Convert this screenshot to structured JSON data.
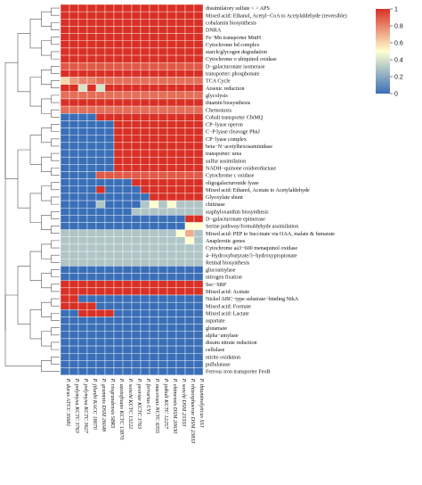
{
  "chart_data": {
    "type": "heatmap",
    "title": "",
    "xlabel": "",
    "ylabel": "",
    "colorbar": {
      "min": 0,
      "max": 1,
      "ticks": [
        "0",
        "0.2",
        "0.4",
        "0.6",
        "0.8",
        "1"
      ],
      "colors": [
        "#3a6fb8",
        "#ffffd0",
        "#d93025"
      ]
    },
    "dendrogram": "left",
    "columns": [
      "P. durus ATCC 35681",
      "P. polymyxa KCTC 3763",
      "P. polymyxa KCTC 3627",
      "P. jilunlii KACC 18070",
      "P. graminis DSM 26048",
      "P. riograndensis SBR5",
      "P. azotofixans KCTC 13870",
      "P. sonchi KCTC 13222",
      "P. peoriae KCTC 3763",
      "P. ferrarius CY1",
      "P. macerans NCTC 6355",
      "P. pabuli KCTC 12257",
      "P. ehimensis DSM 20630",
      "P. sonchi DSM 23333",
      "P. rhizosphaerae DSM 23833",
      "P. thiaminolyticus SSJ"
    ],
    "highlight_column_index": 13,
    "highlight_color": "#e0208a",
    "rows": [
      "dissimilatory sulfate < > APS",
      "Mixed acid: Ethanol, Acetyl−CoA to Acetylaldehyde (reversible)",
      "cobalamin biosynthesis",
      "DNRA",
      "Fe−Mn transporter MntH",
      "Cytochrome bd complex",
      "starch/glycogen degradation",
      "Cytochrome o ubiquinol oxidase",
      "D−galacturonate isomerase",
      "transporter: phosphonate",
      "TCA Cycle",
      "Arsenic reduction",
      "glycolysis",
      "thiamin biosynthesis",
      "Chemotaxis",
      "Cobalt transporter CbiMQ",
      "CP−lyase operon",
      "C−P lyase cleavage PhnJ",
      "CP−lyase complex",
      "beta−N−acetylhexosaminidase",
      "transporter: urea",
      "sulfur assimilation",
      "NADH−quinone oxidoreductase",
      "Cytochrome c oxidase",
      "oligogalacturonide lyase",
      "Mixed acid: Ethanol, Acetate to Acetylaldehyde",
      "Glyoxylate shunt",
      "chitinase",
      "staphyloxanthin biosynthesis",
      "D−galacturonate epimerase",
      "Serine pathway/formaldehyde assimilation",
      "Mixed acid: PEP to Succinate via OAA, malate & fumarate",
      "Anaplerotic genes",
      "Cytochrome aa3−600 menaquinol oxidase",
      "4−Hydroxybutyrate/3−hydroxypropionate",
      "Retinal biosynthesis",
      "glucoamylase",
      "nitrogen fixation",
      "Sec−SRP",
      "Mixed acid: Acetate",
      "Nickel ABC−type substrate−binding NikA",
      "Mixed acid: Formate",
      "Mixed acid: Lactate",
      "aspartate",
      "glutamate",
      "alpha−amylase",
      "dissim nitrate reduction",
      "cellulase",
      "nitrite oxidation",
      "pullulanase",
      "Ferrous iron transporter FeoB"
    ],
    "values": [
      [
        1,
        1,
        1,
        1,
        1,
        1,
        1,
        1,
        1,
        1,
        1,
        1,
        1,
        1,
        1,
        1
      ],
      [
        1,
        1,
        1,
        1,
        1,
        1,
        1,
        1,
        1,
        1,
        1,
        1,
        1,
        1,
        1,
        1
      ],
      [
        1,
        1,
        1,
        1,
        1,
        1,
        1,
        1,
        1,
        1,
        1,
        1,
        1,
        1,
        1,
        1
      ],
      [
        1,
        1,
        1,
        1,
        1,
        1,
        1,
        1,
        1,
        1,
        1,
        1,
        1,
        1,
        1,
        1
      ],
      [
        1,
        1,
        1,
        1,
        1,
        1,
        1,
        1,
        1,
        1,
        1,
        1,
        1,
        1,
        1,
        1
      ],
      [
        1,
        1,
        1,
        1,
        1,
        1,
        1,
        1,
        1,
        1,
        1,
        1,
        1,
        1,
        1,
        1
      ],
      [
        1,
        1,
        1,
        1,
        1,
        1,
        1,
        1,
        1,
        1,
        1,
        1,
        1,
        1,
        1,
        1
      ],
      [
        1,
        1,
        1,
        1,
        1,
        1,
        1,
        1,
        1,
        1,
        1,
        1,
        1,
        1,
        1,
        1
      ],
      [
        0.9,
        0.9,
        0.9,
        0.9,
        0.9,
        0.9,
        0.9,
        0.9,
        0.9,
        0.9,
        0.9,
        0.9,
        0.9,
        0.9,
        0.9,
        0.9
      ],
      [
        1,
        1,
        1,
        1,
        1,
        1,
        1,
        1,
        1,
        1,
        1,
        1,
        1,
        1,
        1,
        1
      ],
      [
        0.6,
        0.75,
        0.8,
        0.8,
        0.85,
        0.85,
        0.85,
        0.85,
        0.85,
        0.85,
        0.85,
        0.85,
        0.85,
        0.85,
        0.85,
        0.85
      ],
      [
        1,
        1,
        0.4,
        1,
        0.4,
        1,
        1,
        1,
        1,
        1,
        1,
        1,
        1,
        1,
        1,
        1
      ],
      [
        0.85,
        0.85,
        0.85,
        0.85,
        0.85,
        0.85,
        0.85,
        0.85,
        0.85,
        0.85,
        0.85,
        0.85,
        0.85,
        0.85,
        0.85,
        0.85
      ],
      [
        1,
        1,
        1,
        1,
        1,
        1,
        1,
        1,
        1,
        1,
        1,
        1,
        1,
        1,
        1,
        1
      ],
      [
        0.85,
        0.85,
        0.85,
        0.85,
        0.85,
        0.85,
        0.85,
        0.85,
        0.85,
        0.85,
        0.85,
        0.85,
        0.85,
        0.85,
        0.85,
        0.85
      ],
      [
        0,
        0,
        0,
        0,
        1,
        1,
        1,
        1,
        1,
        1,
        1,
        1,
        1,
        1,
        1,
        1
      ],
      [
        0,
        0,
        0,
        0,
        0,
        0,
        1,
        1,
        1,
        1,
        1,
        1,
        1,
        1,
        1,
        1
      ],
      [
        0,
        0,
        0,
        0,
        0,
        0,
        1,
        1,
        1,
        1,
        1,
        1,
        1,
        1,
        1,
        1
      ],
      [
        0,
        0,
        0,
        0,
        0,
        0,
        1,
        1,
        1,
        1,
        1,
        1,
        1,
        1,
        1,
        1
      ],
      [
        0,
        0,
        0,
        0,
        0,
        0,
        1,
        1,
        1,
        1,
        1,
        1,
        1,
        1,
        1,
        1
      ],
      [
        0,
        0,
        0,
        0,
        0,
        0,
        1,
        1,
        1,
        1,
        1,
        1,
        1,
        1,
        1,
        1
      ],
      [
        0,
        0,
        0,
        0,
        0,
        0,
        1,
        1,
        1,
        1,
        1,
        1,
        1,
        1,
        1,
        1
      ],
      [
        0,
        0,
        0,
        0,
        0,
        0,
        1,
        1,
        1,
        1,
        1,
        1,
        1,
        1,
        1,
        1
      ],
      [
        0,
        0,
        0,
        0,
        0.9,
        0.9,
        0.9,
        0.9,
        0.9,
        0.9,
        0.9,
        0.9,
        0.9,
        0.9,
        0.9,
        0.9
      ],
      [
        0,
        0,
        0,
        0,
        0,
        0,
        0,
        0,
        1,
        1,
        1,
        1,
        1,
        1,
        1,
        1
      ],
      [
        0,
        0,
        0,
        0,
        1,
        0,
        0,
        0,
        0,
        1,
        1,
        1,
        1,
        1,
        1,
        1
      ],
      [
        0,
        0,
        0,
        0,
        0,
        0,
        0,
        0,
        0,
        0,
        1,
        1,
        1,
        1,
        1,
        1
      ],
      [
        0,
        0,
        0,
        0,
        0.3,
        0,
        0,
        0,
        0,
        0.3,
        0.5,
        0.3,
        0.5,
        0.3,
        0.3,
        0.3
      ],
      [
        0,
        0,
        0,
        0,
        0,
        0,
        0,
        0,
        0.3,
        0.3,
        0.3,
        0.3,
        0.3,
        0.3,
        0.3,
        0.3
      ],
      [
        0,
        0,
        0,
        0,
        0,
        0,
        0,
        0,
        0,
        0,
        0,
        0,
        0,
        0,
        1,
        1
      ],
      [
        0,
        0,
        0,
        0,
        0,
        0,
        0,
        0,
        0,
        0,
        0,
        0,
        0,
        0,
        0.5,
        0.5
      ],
      [
        0.3,
        0.3,
        0.3,
        0.3,
        0.3,
        0.3,
        0.3,
        0.3,
        0.3,
        0.3,
        0.3,
        0.3,
        0.3,
        0.5,
        0.7,
        0.3
      ],
      [
        0.3,
        0.3,
        0.3,
        0.3,
        0.3,
        0.3,
        0.3,
        0.3,
        0.3,
        0.3,
        0.3,
        0.3,
        0.3,
        0.3,
        0.5,
        0.3
      ],
      [
        0.3,
        0.3,
        0.3,
        0.3,
        0.3,
        0.3,
        0.3,
        0.3,
        0.3,
        0.3,
        0.3,
        0.3,
        0.3,
        0.3,
        0.3,
        0.3
      ],
      [
        0.3,
        0.3,
        0.3,
        0.3,
        0.3,
        0.3,
        0.3,
        0.3,
        0.3,
        0.3,
        0.3,
        0.3,
        0.3,
        0.3,
        0.3,
        0.3
      ],
      [
        0.3,
        0.3,
        0.3,
        0.3,
        0.3,
        0.3,
        0.3,
        0.3,
        0.3,
        0.3,
        0.3,
        0.3,
        0.3,
        0.3,
        0.3,
        0.3
      ],
      [
        0,
        0,
        0,
        0,
        0,
        0,
        0,
        0,
        0,
        0,
        0,
        0,
        0,
        0,
        0,
        0
      ],
      [
        0,
        0,
        0,
        0,
        0,
        0,
        0,
        0,
        0,
        0,
        0,
        0,
        0,
        0,
        0,
        0
      ],
      [
        1,
        1,
        1,
        1,
        1,
        1,
        1,
        1,
        1,
        1,
        1,
        1,
        1,
        1,
        1,
        1
      ],
      [
        1,
        1,
        1,
        1,
        1,
        1,
        1,
        1,
        1,
        1,
        1,
        1,
        1,
        1,
        1,
        1
      ],
      [
        1,
        1,
        0,
        0,
        0,
        0,
        0,
        0,
        0,
        0,
        0,
        0,
        0,
        0,
        0,
        0
      ],
      [
        1,
        1,
        1,
        1,
        0,
        0,
        0,
        0,
        0,
        0,
        0,
        0,
        0,
        0,
        0,
        0
      ],
      [
        0,
        0,
        1,
        1,
        1,
        1,
        0,
        0,
        0,
        0,
        0,
        0,
        0,
        0,
        0,
        0
      ],
      [
        0,
        0,
        0,
        0,
        0,
        0,
        0,
        0,
        0,
        0,
        0,
        0,
        0,
        0,
        0,
        0
      ],
      [
        0,
        0,
        0,
        0,
        0,
        0,
        0,
        0,
        0,
        0,
        0,
        0,
        0,
        0,
        0,
        0
      ],
      [
        0,
        0,
        0,
        0,
        0,
        0,
        0,
        0,
        0,
        0,
        0,
        0,
        0,
        0,
        0,
        0
      ],
      [
        0,
        0,
        0,
        0,
        0,
        0,
        0,
        0,
        0,
        0,
        0,
        0,
        0,
        0,
        0,
        0
      ],
      [
        0,
        0,
        0,
        0,
        0,
        0,
        0,
        0,
        0,
        0,
        0,
        0,
        0,
        0,
        0,
        0
      ],
      [
        0,
        0,
        0,
        0,
        0,
        0,
        0,
        0,
        0,
        0,
        0,
        0,
        0,
        0,
        0,
        0
      ],
      [
        0,
        0,
        0,
        0,
        0,
        0,
        0,
        0,
        0,
        0,
        0,
        0,
        0,
        0,
        0,
        0
      ],
      [
        0,
        0,
        0,
        0,
        0,
        0,
        0,
        0,
        0,
        0,
        0,
        0,
        0,
        0,
        0,
        0
      ]
    ]
  }
}
